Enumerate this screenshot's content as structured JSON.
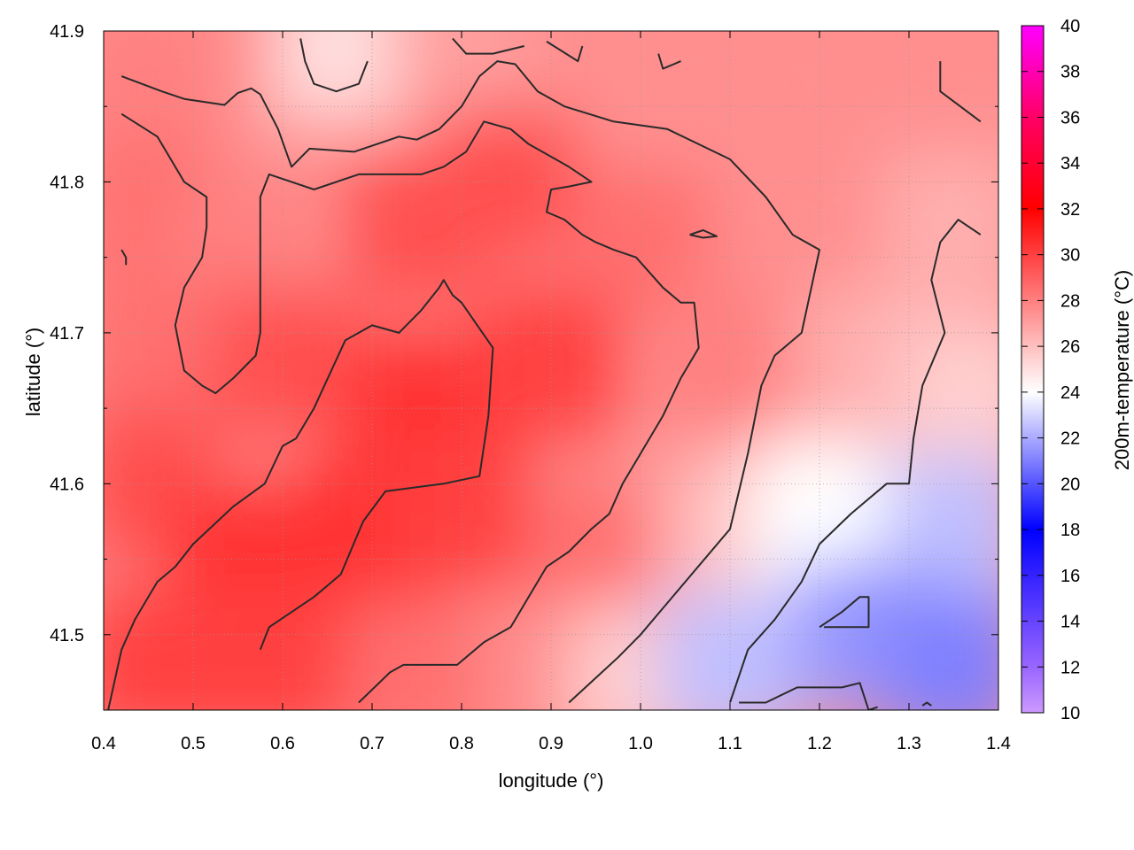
{
  "chart_data": {
    "type": "heatmap",
    "title": "",
    "xlabel": "longitude (°)",
    "ylabel": "latitude (°)",
    "colorbar_label": "200m-temperature (°C)",
    "xlim": [
      0.4,
      1.4
    ],
    "ylim": [
      41.45,
      41.9
    ],
    "x_ticks": [
      0.4,
      0.5,
      0.6,
      0.7,
      0.8,
      0.9,
      1.0,
      1.1,
      1.2,
      1.3,
      1.4
    ],
    "x_tick_labels": [
      "0.4",
      "0.5",
      "0.6",
      "0.7",
      "0.8",
      "0.9",
      "1.0",
      "1.1",
      "1.2",
      "1.3",
      "1.4"
    ],
    "y_ticks": [
      41.5,
      41.6,
      41.7,
      41.8,
      41.9
    ],
    "y_tick_labels": [
      "41.5",
      "41.6",
      "41.7",
      "41.8",
      "41.9"
    ],
    "y_minor_ticks": [
      41.55,
      41.65,
      41.75,
      41.85
    ],
    "colorbar_range": [
      10,
      40
    ],
    "colorbar_ticks": [
      10,
      12,
      14,
      16,
      18,
      20,
      22,
      24,
      26,
      28,
      30,
      32,
      34,
      36,
      38,
      40
    ],
    "colorbar_tick_labels": [
      "10",
      "12",
      "14",
      "16",
      "18",
      "20",
      "22",
      "24",
      "26",
      "28",
      "30",
      "32",
      "34",
      "36",
      "38",
      "40"
    ],
    "colormap": [
      {
        "value": 10,
        "color": "#cc99ff"
      },
      {
        "value": 12,
        "color": "#9966ff"
      },
      {
        "value": 18,
        "color": "#0000ff"
      },
      {
        "value": 24,
        "color": "#ffffff"
      },
      {
        "value": 32,
        "color": "#ff0000"
      },
      {
        "value": 36,
        "color": "#ff0066"
      },
      {
        "value": 40,
        "color": "#ff00ff"
      }
    ],
    "grid": true,
    "field_samples": [
      {
        "x": 0.45,
        "y": 41.87,
        "v": 28.0
      },
      {
        "x": 0.6,
        "y": 41.88,
        "v": 27.5
      },
      {
        "x": 0.67,
        "y": 41.89,
        "v": 25.0
      },
      {
        "x": 0.8,
        "y": 41.88,
        "v": 27.0
      },
      {
        "x": 0.95,
        "y": 41.88,
        "v": 27.5
      },
      {
        "x": 1.15,
        "y": 41.88,
        "v": 27.5
      },
      {
        "x": 1.35,
        "y": 41.87,
        "v": 27.5
      },
      {
        "x": 0.45,
        "y": 41.78,
        "v": 28.5
      },
      {
        "x": 0.55,
        "y": 41.75,
        "v": 28.0
      },
      {
        "x": 0.75,
        "y": 41.77,
        "v": 29.5
      },
      {
        "x": 0.85,
        "y": 41.8,
        "v": 29.5
      },
      {
        "x": 1.0,
        "y": 41.76,
        "v": 28.5
      },
      {
        "x": 1.2,
        "y": 41.78,
        "v": 27.5
      },
      {
        "x": 1.35,
        "y": 41.77,
        "v": 26.5
      },
      {
        "x": 0.45,
        "y": 41.68,
        "v": 28.5
      },
      {
        "x": 0.6,
        "y": 41.68,
        "v": 29.5
      },
      {
        "x": 0.75,
        "y": 41.65,
        "v": 30.5
      },
      {
        "x": 0.9,
        "y": 41.68,
        "v": 30.0
      },
      {
        "x": 1.1,
        "y": 41.68,
        "v": 28.0
      },
      {
        "x": 1.25,
        "y": 41.68,
        "v": 26.5
      },
      {
        "x": 1.37,
        "y": 41.66,
        "v": 25.5
      },
      {
        "x": 0.45,
        "y": 41.6,
        "v": 29.5
      },
      {
        "x": 0.55,
        "y": 41.55,
        "v": 30.5
      },
      {
        "x": 0.7,
        "y": 41.57,
        "v": 30.5
      },
      {
        "x": 0.8,
        "y": 41.58,
        "v": 30.0
      },
      {
        "x": 0.95,
        "y": 41.55,
        "v": 28.5
      },
      {
        "x": 1.1,
        "y": 41.57,
        "v": 26.0
      },
      {
        "x": 1.2,
        "y": 41.58,
        "v": 24.0
      },
      {
        "x": 1.35,
        "y": 41.57,
        "v": 22.5
      },
      {
        "x": 0.45,
        "y": 41.48,
        "v": 30.0
      },
      {
        "x": 0.6,
        "y": 41.48,
        "v": 30.0
      },
      {
        "x": 0.75,
        "y": 41.47,
        "v": 28.5
      },
      {
        "x": 0.9,
        "y": 41.47,
        "v": 27.5
      },
      {
        "x": 1.0,
        "y": 41.47,
        "v": 25.5
      },
      {
        "x": 1.1,
        "y": 41.48,
        "v": 22.5
      },
      {
        "x": 1.25,
        "y": 41.5,
        "v": 21.5
      },
      {
        "x": 1.35,
        "y": 41.48,
        "v": 21.0
      }
    ],
    "contours": [
      {
        "level": 26,
        "points": [
          [
            0.42,
            41.87
          ],
          [
            0.465,
            41.86
          ],
          [
            0.49,
            41.855
          ],
          [
            0.535,
            41.851
          ],
          [
            0.55,
            41.859
          ],
          [
            0.565,
            41.862
          ],
          [
            0.575,
            41.858
          ],
          [
            0.595,
            41.835
          ],
          [
            0.61,
            41.81
          ],
          [
            0.63,
            41.822
          ],
          [
            0.68,
            41.82
          ],
          [
            0.73,
            41.83
          ],
          [
            0.75,
            41.828
          ],
          [
            0.775,
            41.835
          ],
          [
            0.8,
            41.85
          ],
          [
            0.82,
            41.87
          ],
          [
            0.84,
            41.88
          ],
          [
            0.86,
            41.878
          ],
          [
            0.885,
            41.86
          ],
          [
            0.915,
            41.85
          ],
          [
            0.97,
            41.84
          ],
          [
            1.03,
            41.835
          ],
          [
            1.1,
            41.815
          ],
          [
            1.14,
            41.79
          ],
          [
            1.17,
            41.765
          ],
          [
            1.2,
            41.755
          ],
          [
            1.18,
            41.7
          ],
          [
            1.15,
            41.685
          ],
          [
            1.135,
            41.665
          ],
          [
            1.12,
            41.62
          ],
          [
            1.1,
            41.57
          ],
          [
            1.05,
            41.535
          ],
          [
            1.0,
            41.5
          ],
          [
            0.975,
            41.485
          ],
          [
            0.92,
            41.455
          ]
        ]
      },
      {
        "level": 26,
        "points": [
          [
            1.335,
            41.88
          ],
          [
            1.335,
            41.86
          ],
          [
            1.38,
            41.84
          ]
        ]
      },
      {
        "level": 26,
        "points": [
          [
            1.38,
            41.765
          ],
          [
            1.355,
            41.775
          ],
          [
            1.335,
            41.76
          ],
          [
            1.325,
            41.735
          ],
          [
            1.34,
            41.7
          ],
          [
            1.315,
            41.665
          ],
          [
            1.305,
            41.63
          ],
          [
            1.3,
            41.6
          ],
          [
            1.275,
            41.6
          ],
          [
            1.255,
            41.59
          ],
          [
            1.235,
            41.58
          ],
          [
            1.2,
            41.56
          ],
          [
            1.18,
            41.535
          ],
          [
            1.15,
            41.51
          ],
          [
            1.12,
            41.49
          ],
          [
            1.1,
            41.455
          ]
        ]
      },
      {
        "level": 26,
        "points": [
          [
            0.62,
            41.895
          ],
          [
            0.625,
            41.88
          ],
          [
            0.635,
            41.865
          ],
          [
            0.66,
            41.86
          ],
          [
            0.685,
            41.865
          ],
          [
            0.695,
            41.88
          ]
        ]
      },
      {
        "level": 26,
        "points": [
          [
            0.79,
            41.895
          ],
          [
            0.805,
            41.885
          ],
          [
            0.835,
            41.885
          ],
          [
            0.87,
            41.89
          ]
        ]
      },
      {
        "level": 26,
        "points": [
          [
            0.895,
            41.893
          ],
          [
            0.93,
            41.88
          ],
          [
            0.935,
            41.89
          ]
        ]
      },
      {
        "level": 26,
        "points": [
          [
            1.02,
            41.885
          ],
          [
            1.025,
            41.875
          ],
          [
            1.045,
            41.88
          ]
        ]
      },
      {
        "level": 26,
        "points": [
          [
            0.425,
            41.745
          ],
          [
            0.425,
            41.75
          ],
          [
            0.42,
            41.755
          ]
        ]
      },
      {
        "level": 28,
        "points": [
          [
            0.42,
            41.845
          ],
          [
            0.46,
            41.83
          ],
          [
            0.49,
            41.8
          ],
          [
            0.515,
            41.79
          ],
          [
            0.515,
            41.77
          ],
          [
            0.51,
            41.75
          ],
          [
            0.49,
            41.73
          ],
          [
            0.48,
            41.705
          ],
          [
            0.485,
            41.69
          ],
          [
            0.49,
            41.675
          ],
          [
            0.51,
            41.665
          ],
          [
            0.525,
            41.66
          ],
          [
            0.545,
            41.67
          ],
          [
            0.57,
            41.685
          ],
          [
            0.575,
            41.7
          ],
          [
            0.575,
            41.74
          ],
          [
            0.575,
            41.79
          ],
          [
            0.585,
            41.805
          ],
          [
            0.61,
            41.8
          ],
          [
            0.635,
            41.795
          ],
          [
            0.685,
            41.805
          ],
          [
            0.755,
            41.805
          ],
          [
            0.78,
            41.81
          ],
          [
            0.805,
            41.82
          ],
          [
            0.825,
            41.84
          ],
          [
            0.855,
            41.835
          ],
          [
            0.875,
            41.825
          ],
          [
            0.92,
            41.81
          ],
          [
            0.945,
            41.8
          ],
          [
            0.92,
            41.797
          ],
          [
            0.9,
            41.795
          ],
          [
            0.895,
            41.78
          ],
          [
            0.915,
            41.775
          ],
          [
            0.935,
            41.765
          ],
          [
            0.95,
            41.76
          ],
          [
            0.97,
            41.755
          ],
          [
            0.995,
            41.75
          ],
          [
            1.01,
            41.74
          ],
          [
            1.025,
            41.73
          ],
          [
            1.045,
            41.72
          ],
          [
            1.06,
            41.72
          ],
          [
            1.065,
            41.69
          ],
          [
            1.045,
            41.67
          ],
          [
            1.025,
            41.645
          ],
          [
            1.01,
            41.63
          ],
          [
            0.995,
            41.615
          ],
          [
            0.98,
            41.6
          ],
          [
            0.965,
            41.58
          ],
          [
            0.945,
            41.57
          ],
          [
            0.92,
            41.555
          ],
          [
            0.895,
            41.545
          ],
          [
            0.88,
            41.53
          ],
          [
            0.855,
            41.505
          ],
          [
            0.825,
            41.495
          ],
          [
            0.795,
            41.48
          ],
          [
            0.735,
            41.48
          ],
          [
            0.72,
            41.475
          ],
          [
            0.685,
            41.455
          ]
        ]
      },
      {
        "level": 28,
        "points": [
          [
            0.575,
            41.49
          ],
          [
            0.585,
            41.505
          ],
          [
            0.635,
            41.525
          ],
          [
            0.665,
            41.54
          ],
          [
            0.69,
            41.575
          ],
          [
            0.715,
            41.595
          ],
          [
            0.78,
            41.6
          ],
          [
            0.82,
            41.605
          ],
          [
            0.83,
            41.645
          ],
          [
            0.835,
            41.69
          ],
          [
            0.8,
            41.72
          ],
          [
            0.79,
            41.725
          ],
          [
            0.78,
            41.735
          ],
          [
            0.775,
            41.73
          ],
          [
            0.755,
            41.715
          ],
          [
            0.73,
            41.7
          ],
          [
            0.7,
            41.705
          ],
          [
            0.67,
            41.695
          ],
          [
            0.635,
            41.65
          ],
          [
            0.615,
            41.63
          ],
          [
            0.6,
            41.625
          ],
          [
            0.58,
            41.6
          ],
          [
            0.545,
            41.585
          ],
          [
            0.5,
            41.56
          ],
          [
            0.48,
            41.545
          ],
          [
            0.46,
            41.535
          ],
          [
            0.435,
            41.51
          ],
          [
            0.42,
            41.49
          ],
          [
            0.405,
            41.45
          ]
        ]
      },
      {
        "level": 26,
        "points": [
          [
            1.055,
            41.765
          ],
          [
            1.07,
            41.768
          ],
          [
            1.085,
            41.764
          ],
          [
            1.07,
            41.763
          ],
          [
            1.055,
            41.765
          ]
        ]
      },
      {
        "level": 24,
        "points": [
          [
            1.2,
            41.505
          ],
          [
            1.225,
            41.515
          ],
          [
            1.245,
            41.525
          ],
          [
            1.255,
            41.525
          ],
          [
            1.255,
            41.52
          ],
          [
            1.255,
            41.505
          ],
          [
            1.205,
            41.505
          ]
        ]
      },
      {
        "level": 24,
        "points": [
          [
            1.11,
            41.455
          ],
          [
            1.14,
            41.455
          ],
          [
            1.175,
            41.465
          ],
          [
            1.225,
            41.465
          ],
          [
            1.245,
            41.468
          ],
          [
            1.255,
            41.45
          ],
          [
            1.265,
            41.452
          ]
        ]
      },
      {
        "level": 24,
        "points": [
          [
            1.315,
            41.453
          ],
          [
            1.32,
            41.455
          ],
          [
            1.325,
            41.453
          ]
        ]
      }
    ]
  }
}
